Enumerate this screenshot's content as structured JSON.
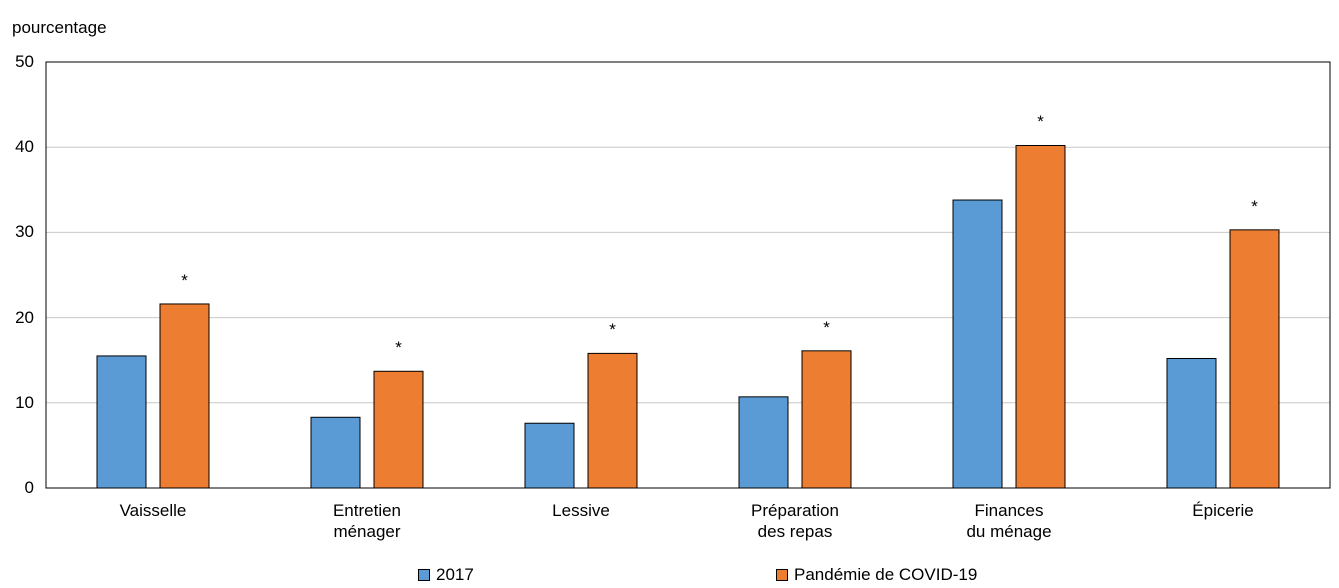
{
  "chart_data": {
    "type": "bar",
    "title": "",
    "ylabel": "pourcentage",
    "xlabel": "",
    "ylim": [
      0,
      50
    ],
    "yticks": [
      0,
      10,
      20,
      30,
      40,
      50
    ],
    "grid": true,
    "legend_position": "bottom",
    "categories": [
      [
        "Vaisselle"
      ],
      [
        "Entretien",
        "ménager"
      ],
      [
        "Lessive"
      ],
      [
        "Préparation",
        "des repas"
      ],
      [
        "Finances",
        "du ménage"
      ],
      [
        "Épicerie"
      ]
    ],
    "series": [
      {
        "name": "2017",
        "color": "#5b9bd5",
        "values": [
          15.5,
          8.3,
          7.6,
          10.7,
          33.8,
          15.2
        ]
      },
      {
        "name": "Pandémie de COVID-19",
        "color": "#ed7d31",
        "values": [
          21.6,
          13.7,
          15.8,
          16.1,
          40.2,
          30.3
        ]
      }
    ],
    "annotations": [
      {
        "category_index": 0,
        "series_index": 1,
        "text": "*"
      },
      {
        "category_index": 1,
        "series_index": 1,
        "text": "*"
      },
      {
        "category_index": 2,
        "series_index": 1,
        "text": "*"
      },
      {
        "category_index": 3,
        "series_index": 1,
        "text": "*"
      },
      {
        "category_index": 4,
        "series_index": 1,
        "text": "*"
      },
      {
        "category_index": 5,
        "series_index": 1,
        "text": "*"
      }
    ]
  }
}
